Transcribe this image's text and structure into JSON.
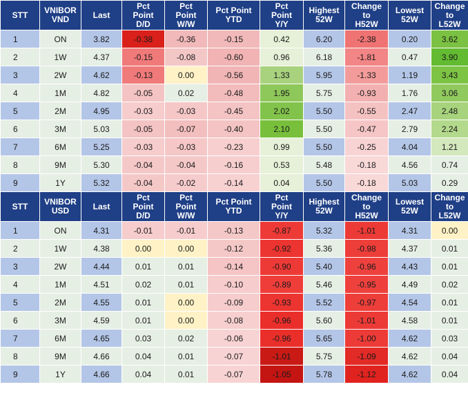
{
  "tables": [
    {
      "headers": [
        "STT",
        "VNIBOR\nVND",
        "Last",
        "Pct\nPoint\nD/D",
        "Pct\nPoint\nW/W",
        "Pct Point\nYTD",
        "Pct\nPoint\nY/Y",
        "Highest\n52W",
        "Change\nto\nH52W",
        "Lowest\n52W",
        "Change\nto\nL52W"
      ],
      "rows": [
        [
          "1",
          "ON",
          "3.82",
          "-0.38",
          "-0.36",
          "-0.15",
          "0.42",
          "6.20",
          "-2.38",
          "0.20",
          "3.62"
        ],
        [
          "2",
          "1W",
          "4.37",
          "-0.15",
          "-0.08",
          "-0.60",
          "0.96",
          "6.18",
          "-1.81",
          "0.47",
          "3.90"
        ],
        [
          "3",
          "2W",
          "4.62",
          "-0.13",
          "0.00",
          "-0.56",
          "1.33",
          "5.95",
          "-1.33",
          "1.19",
          "3.43"
        ],
        [
          "4",
          "1M",
          "4.82",
          "-0.05",
          "0.02",
          "-0.48",
          "1.95",
          "5.75",
          "-0.93",
          "1.76",
          "3.06"
        ],
        [
          "5",
          "2M",
          "4.95",
          "-0.03",
          "-0.03",
          "-0.45",
          "2.02",
          "5.50",
          "-0.55",
          "2.47",
          "2.48"
        ],
        [
          "6",
          "3M",
          "5.03",
          "-0.05",
          "-0.07",
          "-0.40",
          "2.10",
          "5.50",
          "-0.47",
          "2.79",
          "2.24"
        ],
        [
          "7",
          "6M",
          "5.25",
          "-0.03",
          "-0.03",
          "-0.23",
          "0.99",
          "5.50",
          "-0.25",
          "4.04",
          "1.21"
        ],
        [
          "8",
          "9M",
          "5.30",
          "-0.04",
          "-0.04",
          "-0.16",
          "0.53",
          "5.48",
          "-0.18",
          "4.56",
          "0.74"
        ],
        [
          "9",
          "1Y",
          "5.32",
          "-0.04",
          "-0.02",
          "-0.14",
          "0.04",
          "5.50",
          "-0.18",
          "5.03",
          "0.29"
        ]
      ],
      "colors": [
        [
          "#b4c6e7",
          "#e6efe4",
          "#b4c6e7",
          "#d9201b",
          "#f1b9b9",
          "#f1b9b9",
          "#e7f0d8",
          "#b4c6e7",
          "#f07373",
          "#b4c6e7",
          "#7bc142"
        ],
        [
          "#e6efe4",
          "#e6efe4",
          "#e6efe4",
          "#f07a7a",
          "#f4c7c7",
          "#f1b3b3",
          "#e7f0d8",
          "#e6efe4",
          "#f28585",
          "#e6efe4",
          "#63bb31"
        ],
        [
          "#b4c6e7",
          "#e6efe4",
          "#b4c6e7",
          "#f07a7a",
          "#fff2c6",
          "#f1b5b5",
          "#a9d27e",
          "#b4c6e7",
          "#f39b9b",
          "#b4c6e7",
          "#7dc344"
        ],
        [
          "#e6efe4",
          "#e6efe4",
          "#e6efe4",
          "#f4c3c3",
          "#e6efe4",
          "#f3bcbc",
          "#8ec75a",
          "#e6efe4",
          "#f3b0b0",
          "#e6efe4",
          "#90c95e"
        ],
        [
          "#b4c6e7",
          "#e6efe4",
          "#b4c6e7",
          "#f6cccc",
          "#f5c7c7",
          "#f4c3c3",
          "#82c34b",
          "#b4c6e7",
          "#f5c2c2",
          "#b4c6e7",
          "#a7d37c"
        ],
        [
          "#e6efe4",
          "#e6efe4",
          "#e6efe4",
          "#f4c3c3",
          "#f3bebe",
          "#f4c3c3",
          "#78c03c",
          "#e6efe4",
          "#f6c6c6",
          "#e6efe4",
          "#b3d98c"
        ],
        [
          "#b4c6e7",
          "#e6efe4",
          "#b4c6e7",
          "#f6cccc",
          "#f5c7c7",
          "#f7cfcf",
          "#e7f0d8",
          "#b4c6e7",
          "#f8d3d3",
          "#b4c6e7",
          "#d3e8bd"
        ],
        [
          "#e6efe4",
          "#e6efe4",
          "#e6efe4",
          "#f5c8c8",
          "#f5c8c8",
          "#f7cece",
          "#e7f0d8",
          "#e6efe4",
          "#f9d8d8",
          "#e6efe4",
          "#e6efe4"
        ],
        [
          "#b4c6e7",
          "#e6efe4",
          "#b4c6e7",
          "#f5c8c8",
          "#f6cbcb",
          "#f7d0d0",
          "#e7f0d8",
          "#b4c6e7",
          "#f9d8d8",
          "#b4c6e7",
          "#e6efe4"
        ]
      ]
    },
    {
      "headers": [
        "STT",
        "VNIBOR\nUSD",
        "Last",
        "Pct\nPoint\nD/D",
        "Pct\nPoint\nW/W",
        "Pct Point\nYTD",
        "Pct\nPoint\nY/Y",
        "Highest\n52W",
        "Change\nto\nH52W",
        "Lowest\n52W",
        "Change\nto\nL52W"
      ],
      "rows": [
        [
          "1",
          "ON",
          "4.31",
          "-0.01",
          "-0.01",
          "-0.13",
          "-0.87",
          "5.32",
          "-1.01",
          "4.31",
          "0.00"
        ],
        [
          "2",
          "1W",
          "4.38",
          "0.00",
          "0.00",
          "-0.12",
          "-0.92",
          "5.36",
          "-0.98",
          "4.37",
          "0.01"
        ],
        [
          "3",
          "2W",
          "4.44",
          "0.01",
          "0.01",
          "-0.14",
          "-0.90",
          "5.40",
          "-0.96",
          "4.43",
          "0.01"
        ],
        [
          "4",
          "1M",
          "4.51",
          "0.02",
          "0.01",
          "-0.10",
          "-0.89",
          "5.46",
          "-0.95",
          "4.49",
          "0.02"
        ],
        [
          "5",
          "2M",
          "4.55",
          "0.01",
          "0.00",
          "-0.09",
          "-0.93",
          "5.52",
          "-0.97",
          "4.54",
          "0.01"
        ],
        [
          "6",
          "3M",
          "4.59",
          "0.01",
          "0.00",
          "-0.08",
          "-0.96",
          "5.60",
          "-1.01",
          "4.58",
          "0.01"
        ],
        [
          "7",
          "6M",
          "4.65",
          "0.03",
          "0.02",
          "-0.06",
          "-0.96",
          "5.65",
          "-1.00",
          "4.62",
          "0.03"
        ],
        [
          "8",
          "9M",
          "4.66",
          "0.04",
          "0.01",
          "-0.07",
          "-1.01",
          "5.75",
          "-1.09",
          "4.62",
          "0.04"
        ],
        [
          "9",
          "1Y",
          "4.66",
          "0.04",
          "0.01",
          "-0.07",
          "-1.05",
          "5.78",
          "-1.12",
          "4.62",
          "0.04"
        ]
      ],
      "colors": [
        [
          "#b4c6e7",
          "#e6efe4",
          "#b4c6e7",
          "#f6cccc",
          "#f6cccc",
          "#f5c8c8",
          "#ee3a36",
          "#b4c6e7",
          "#ec3a36",
          "#b4c6e7",
          "#fff2c6"
        ],
        [
          "#e6efe4",
          "#e6efe4",
          "#e6efe4",
          "#fff2c6",
          "#fff2c6",
          "#f5c8c8",
          "#ec3430",
          "#e6efe4",
          "#ed3e3a",
          "#e6efe4",
          "#e6efe4"
        ],
        [
          "#b4c6e7",
          "#e6efe4",
          "#b4c6e7",
          "#e6efe4",
          "#e6efe4",
          "#f5c4c4",
          "#ee3a36",
          "#b4c6e7",
          "#ee413d",
          "#b4c6e7",
          "#e6efe4"
        ],
        [
          "#e6efe4",
          "#e6efe4",
          "#e6efe4",
          "#e6efe4",
          "#e6efe4",
          "#f6cccc",
          "#ef3e3a",
          "#e6efe4",
          "#ee413d",
          "#e6efe4",
          "#e6efe4"
        ],
        [
          "#b4c6e7",
          "#e6efe4",
          "#b4c6e7",
          "#e6efe4",
          "#fff2c6",
          "#f6cccc",
          "#ec3430",
          "#b4c6e7",
          "#ee3e3a",
          "#b4c6e7",
          "#e6efe4"
        ],
        [
          "#e6efe4",
          "#e6efe4",
          "#e6efe4",
          "#e6efe4",
          "#fff2c6",
          "#f7cfcf",
          "#ea2f2b",
          "#e6efe4",
          "#ec3a36",
          "#e6efe4",
          "#e6efe4"
        ],
        [
          "#b4c6e7",
          "#e6efe4",
          "#b4c6e7",
          "#e6efe4",
          "#e6efe4",
          "#f8d3d3",
          "#ea2f2b",
          "#b4c6e7",
          "#ed3b37",
          "#b4c6e7",
          "#e6efe4"
        ],
        [
          "#e6efe4",
          "#e6efe4",
          "#e6efe4",
          "#e6efe4",
          "#e6efe4",
          "#f8d3d3",
          "#c91a16",
          "#e6efe4",
          "#e22a26",
          "#e6efe4",
          "#e6efe4"
        ],
        [
          "#b4c6e7",
          "#e6efe4",
          "#b4c6e7",
          "#e6efe4",
          "#e6efe4",
          "#f8d3d3",
          "#c41512",
          "#b4c6e7",
          "#e0231f",
          "#b4c6e7",
          "#e6efe4"
        ]
      ]
    }
  ]
}
